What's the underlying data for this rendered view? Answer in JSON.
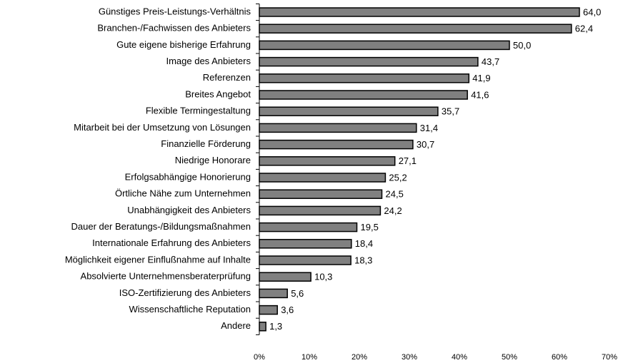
{
  "chart_data": {
    "type": "barh",
    "categories": [
      "Günstiges Preis-Leistungs-Verhältnis",
      "Branchen-/Fachwissen des Anbieters",
      "Gute eigene bisherige Erfahrung",
      "Image des Anbieters",
      "Referenzen",
      "Breites Angebot",
      "Flexible Termingestaltung",
      "Mitarbeit bei der Umsetzung von Lösungen",
      "Finanzielle Förderung",
      "Niedrige Honorare",
      "Erfolgsabhängige Honorierung",
      "Örtliche Nähe zum Unternehmen",
      "Unabhängigkeit des Anbieters",
      "Dauer der Beratungs-/Bildungsmaßnahmen",
      "Internationale Erfahrung des Anbieters",
      "Möglichkeit eigener Einflußnahme auf Inhalte",
      "Absolvierte Unternehmensberaterprüfung",
      "ISO-Zertifizierung des Anbieters",
      "Wissenschaftliche Reputation",
      "Andere"
    ],
    "values": [
      64.0,
      62.4,
      50.0,
      43.7,
      41.9,
      41.6,
      35.7,
      31.4,
      30.7,
      27.1,
      25.2,
      24.5,
      24.2,
      19.5,
      18.4,
      18.3,
      10.3,
      5.6,
      3.6,
      1.3
    ],
    "value_labels": [
      "64,0",
      "62,4",
      "50,0",
      "43,7",
      "41,9",
      "41,6",
      "35,7",
      "31,4",
      "30,7",
      "27,1",
      "25,2",
      "24,5",
      "24,2",
      "19,5",
      "18,4",
      "18,3",
      "10,3",
      "5,6",
      "3,6",
      "1,3"
    ],
    "color": "#808080",
    "xlim": [
      0,
      70
    ],
    "xticks": [
      {
        "value": 0,
        "label": "0%"
      },
      {
        "value": 10,
        "label": "10%"
      },
      {
        "value": 20,
        "label": "20%"
      },
      {
        "value": 30,
        "label": "30%"
      },
      {
        "value": 40,
        "label": "40%"
      },
      {
        "value": 50,
        "label": "50%"
      },
      {
        "value": 60,
        "label": "60%"
      },
      {
        "value": 70,
        "label": "70%"
      }
    ],
    "grid": false
  }
}
